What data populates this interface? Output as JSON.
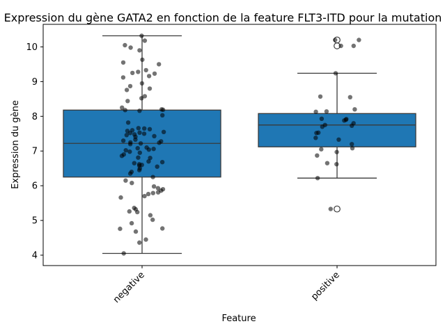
{
  "chart_data": {
    "type": "box",
    "title": "Expression du gène GATA2 en fonction de la feature FLT3-ITD pour la mutation",
    "xlabel": "Feature",
    "ylabel": "Expression du gène",
    "categories": [
      "negative",
      "positive"
    ],
    "ylim": [
      3.7,
      10.65
    ],
    "yticks": [
      4,
      5,
      6,
      7,
      8,
      9,
      10
    ],
    "grid": false,
    "box_color": "#1f77b4",
    "line_color": "#3a3a3a",
    "point_color": "#000000",
    "boxes": [
      {
        "category": "negative",
        "whisker_low": 4.05,
        "q1": 6.25,
        "median": 7.22,
        "q3": 8.18,
        "whisker_high": 10.32,
        "outliers": []
      },
      {
        "category": "positive",
        "whisker_low": 6.22,
        "q1": 7.12,
        "median": 7.75,
        "q3": 8.08,
        "whisker_high": 9.24,
        "outliers": [
          10.2,
          10.03,
          5.33
        ]
      }
    ],
    "points": [
      {
        "category": "negative",
        "values": [
          10.32,
          10.18,
          10.05,
          9.98,
          9.9,
          9.63,
          9.55,
          9.5,
          9.33,
          9.28,
          9.25,
          9.23,
          9.16,
          9.12,
          8.95,
          8.87,
          8.8,
          8.76,
          8.58,
          8.52,
          8.44,
          8.25,
          8.2,
          8.19,
          8.18,
          8.16,
          8.03,
          7.82,
          7.66,
          7.65,
          7.63,
          7.6,
          7.58,
          7.55,
          7.53,
          7.52,
          7.5,
          7.48,
          7.46,
          7.43,
          7.41,
          7.33,
          7.3,
          7.28,
          7.25,
          7.24,
          7.22,
          7.2,
          7.1,
          7.08,
          7.06,
          7.04,
          7.02,
          6.98,
          6.95,
          6.9,
          6.86,
          6.81,
          6.8,
          6.7,
          6.68,
          6.65,
          6.62,
          6.6,
          6.58,
          6.55,
          6.5,
          6.45,
          6.4,
          6.35,
          6.25,
          6.15,
          6.08,
          5.98,
          5.93,
          5.9,
          5.86,
          5.81,
          5.79,
          5.76,
          5.7,
          5.66,
          5.36,
          5.32,
          5.26,
          5.24,
          5.15,
          5.02,
          4.92,
          4.77,
          4.76,
          4.68,
          4.45,
          4.36,
          4.05
        ]
      },
      {
        "category": "positive",
        "values": [
          10.2,
          10.2,
          10.03,
          10.03,
          9.24,
          8.57,
          8.55,
          8.2,
          8.14,
          8.13,
          7.93,
          7.92,
          7.9,
          7.88,
          7.8,
          7.75,
          7.73,
          7.7,
          7.52,
          7.53,
          7.38,
          7.33,
          7.2,
          7.08,
          7.05,
          6.97,
          6.87,
          6.65,
          6.62,
          6.22,
          5.33
        ]
      }
    ]
  }
}
